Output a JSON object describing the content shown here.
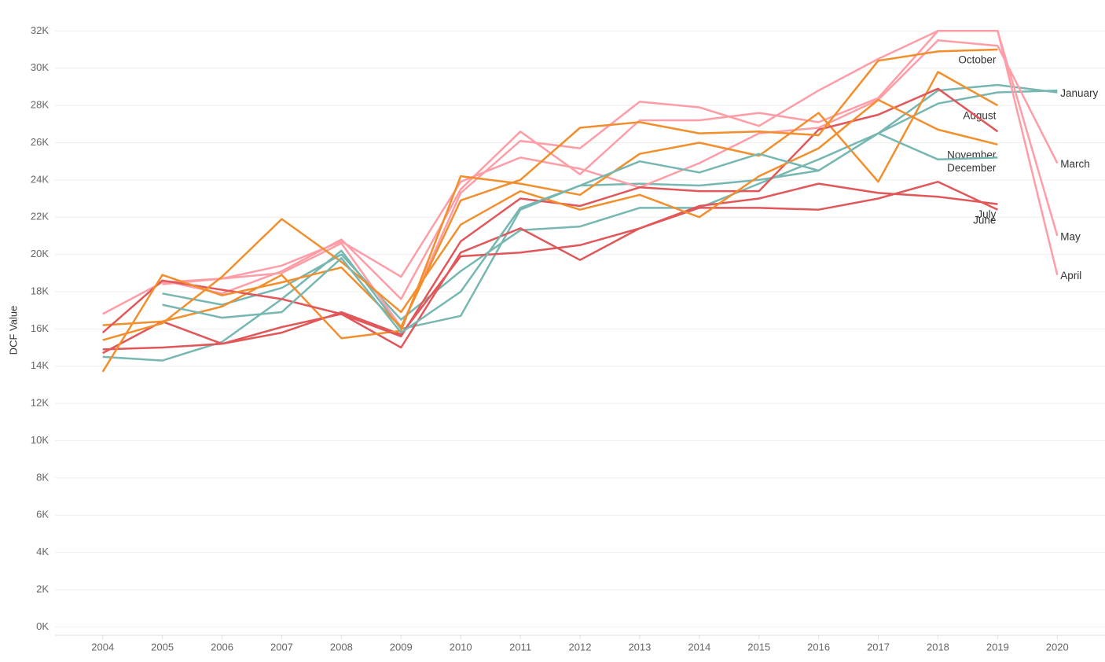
{
  "chart_data": {
    "type": "line",
    "y_label": "DCF Value",
    "x": [
      2004,
      2005,
      2006,
      2007,
      2008,
      2009,
      2010,
      2011,
      2012,
      2013,
      2014,
      2015,
      2016,
      2017,
      2018,
      2019,
      2020
    ],
    "xlim": [
      2003.2,
      2020.8
    ],
    "xticks": [
      2004,
      2005,
      2006,
      2007,
      2008,
      2009,
      2010,
      2011,
      2012,
      2013,
      2014,
      2015,
      2016,
      2017,
      2018,
      2019,
      2020
    ],
    "ylim": [
      -450,
      33450
    ],
    "yticks": [
      {
        "value": 0,
        "label": "0K"
      },
      {
        "value": 2000,
        "label": "2K"
      },
      {
        "value": 4000,
        "label": "4K"
      },
      {
        "value": 6000,
        "label": "6K"
      },
      {
        "value": 8000,
        "label": "8K"
      },
      {
        "value": 10000,
        "label": "10K"
      },
      {
        "value": 12000,
        "label": "12K"
      },
      {
        "value": 14000,
        "label": "14K"
      },
      {
        "value": 16000,
        "label": "16K"
      },
      {
        "value": 18000,
        "label": "18K"
      },
      {
        "value": 20000,
        "label": "20K"
      },
      {
        "value": 22000,
        "label": "22K"
      },
      {
        "value": 24000,
        "label": "24K"
      },
      {
        "value": 26000,
        "label": "26K"
      },
      {
        "value": 28000,
        "label": "28K"
      },
      {
        "value": 30000,
        "label": "30K"
      },
      {
        "value": 32000,
        "label": "32K"
      }
    ],
    "grid": true,
    "series": [
      {
        "name": "January",
        "color": "#76b7b2",
        "values": [
          14500,
          14300,
          15300,
          17600,
          20200,
          16000,
          16700,
          22400,
          23700,
          23800,
          23700,
          24000,
          24500,
          26500,
          28800,
          29100,
          28700
        ]
      },
      {
        "color": "#76b7b2",
        "values": [
          null,
          17900,
          17300,
          18200,
          20000,
          16500,
          19100,
          21300,
          21500,
          22500,
          22500,
          23800,
          25100,
          26500,
          28100,
          28700,
          28800
        ]
      },
      {
        "name": "March",
        "color": "#ff9da7",
        "values": [
          16800,
          18500,
          18700,
          19400,
          20700,
          18800,
          23900,
          25200,
          24600,
          23600,
          24900,
          26500,
          26800,
          28300,
          31500,
          31200,
          24900
        ]
      },
      {
        "name": "April",
        "color": "#ff9da7",
        "values": [
          null,
          18400,
          18700,
          19000,
          20600,
          16100,
          23300,
          26100,
          25700,
          28200,
          27900,
          26900,
          28800,
          30500,
          32000,
          32000,
          18900
        ]
      },
      {
        "name": "May",
        "color": "#ff9da7",
        "values": [
          null,
          18600,
          17900,
          19100,
          20800,
          17600,
          23500,
          26600,
          24300,
          27200,
          27200,
          27600,
          27100,
          28400,
          32000,
          32000,
          21000
        ]
      },
      {
        "name": "June",
        "color": "#e15759",
        "values": [
          14900,
          15000,
          15200,
          15800,
          16900,
          15700,
          19900,
          20100,
          20500,
          21400,
          22500,
          22500,
          22400,
          23000,
          23900,
          22400,
          null
        ]
      },
      {
        "name": "July",
        "color": "#e15759",
        "values": [
          14700,
          16400,
          15200,
          16100,
          16800,
          15000,
          20100,
          21400,
          19700,
          21400,
          22600,
          23000,
          23800,
          23300,
          23100,
          22700,
          null
        ]
      },
      {
        "name": "August",
        "color": "#f28e2b",
        "values": [
          16200,
          16400,
          17200,
          18900,
          15500,
          15900,
          24200,
          23800,
          23200,
          25400,
          26000,
          25300,
          27600,
          23900,
          29800,
          28000,
          null
        ]
      },
      {
        "color": "#e15759",
        "values": [
          15800,
          18600,
          18100,
          17600,
          16800,
          15600,
          20700,
          23000,
          22600,
          23600,
          23400,
          23400,
          26700,
          27500,
          28900,
          26600,
          null
        ]
      },
      {
        "name": "October",
        "color": "#f28e2b",
        "values": [
          13700,
          18900,
          17800,
          18500,
          19300,
          16100,
          22900,
          24000,
          26800,
          27100,
          26500,
          26600,
          26400,
          30400,
          30900,
          31000,
          null
        ]
      },
      {
        "name": "November",
        "color": "#f28e2b",
        "values": [
          15400,
          16300,
          18800,
          21900,
          19600,
          16900,
          21600,
          23400,
          22400,
          23200,
          22000,
          24200,
          25700,
          28300,
          26700,
          25900,
          null
        ]
      },
      {
        "name": "December",
        "color": "#76b7b2",
        "values": [
          null,
          17300,
          16600,
          16900,
          19800,
          15800,
          18000,
          22500,
          23700,
          25000,
          24400,
          25400,
          24500,
          26500,
          25100,
          25200,
          null
        ]
      }
    ]
  }
}
